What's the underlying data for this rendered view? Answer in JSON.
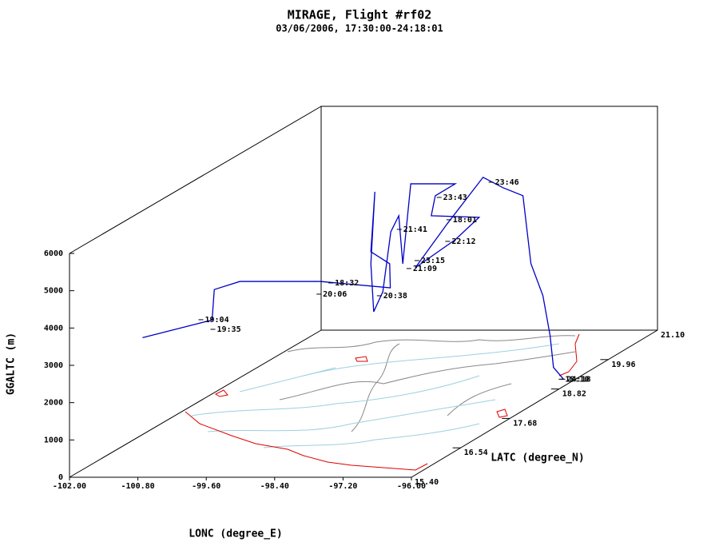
{
  "chart_data": {
    "type": "line3d",
    "title": "MIRAGE, Flight #rf02",
    "subtitle": "03/06/2006, 17:30:00-24:18:01",
    "xlabel": "LONC (degree_E)",
    "ylabel": "LATC (degree_N)",
    "zlabel": "GGALTC (m)",
    "xlim": [
      -102,
      -96
    ],
    "xticks": [
      {
        "value": -102,
        "label": "-102.00"
      },
      {
        "value": -100.8,
        "label": "-100.80"
      },
      {
        "value": -99.6,
        "label": "-99.60"
      },
      {
        "value": -98.4,
        "label": "-98.40"
      },
      {
        "value": -97.2,
        "label": "-97.20"
      },
      {
        "value": -96,
        "label": "-96.00"
      }
    ],
    "ylim": [
      15.4,
      21.1
    ],
    "yticks": [
      {
        "value": 15.4,
        "label": "15.40"
      },
      {
        "value": 16.54,
        "label": "16.54"
      },
      {
        "value": 17.68,
        "label": "17.68"
      },
      {
        "value": 18.82,
        "label": "18.82"
      },
      {
        "value": 19.96,
        "label": "19.96"
      },
      {
        "value": 21.1,
        "label": "21.10"
      }
    ],
    "zlim": [
      0,
      6000
    ],
    "zticks": [
      0,
      1000,
      2000,
      3000,
      4000,
      5000,
      6000
    ],
    "series": [
      {
        "color": "#0000c8",
        "x": [
          -101.93,
          -100.99,
          -100.71,
          -101.05,
          -100.98,
          -99.57,
          -98.34,
          -98.73,
          -99.06,
          -98.99,
          -99.06,
          -99.01,
          -98.85,
          -98.71,
          -98.57,
          -98.5,
          -98.36,
          -97.58,
          -97.93,
          -98.0,
          -97.16,
          -97.58,
          -98.28,
          -97.72,
          -97.47,
          -97.12,
          -96.77,
          -96.63,
          -96.42,
          -96.37,
          -96.31,
          -96.21
        ],
        "y": [
          17.0,
          17.0,
          17.0,
          17.5,
          18.0,
          18.0,
          18.0,
          18.5,
          18.5,
          18.5,
          18.5,
          18.5,
          18.5,
          18.5,
          18.5,
          18.5,
          18.5,
          18.5,
          18.5,
          18.5,
          18.5,
          18.5,
          18.5,
          18.5,
          19.0,
          19.0,
          19.0,
          19.0,
          19.0,
          19.1,
          19.1,
          19.2
        ],
        "z": [
          2636,
          3000,
          3107,
          3579,
          3450,
          3450,
          3279,
          3579,
          3900,
          5507,
          3579,
          2293,
          2829,
          4436,
          4865,
          3579,
          5721,
          5721,
          5400,
          4865,
          4822,
          4222,
          3472,
          4650,
          5550,
          5271,
          5057,
          3236,
          2379,
          1243,
          386,
          0
        ]
      }
    ],
    "annotations": [
      {
        "text": "19:04",
        "x": -102.0,
        "y": 18.5,
        "z": 2079
      },
      {
        "text": "19:35",
        "x": -101.79,
        "y": 18.5,
        "z": 1821
      },
      {
        "text": "18:32",
        "x": -99.72,
        "y": 18.5,
        "z": 3064
      },
      {
        "text": "20:06",
        "x": -99.93,
        "y": 18.5,
        "z": 2764
      },
      {
        "text": "20:38",
        "x": -98.87,
        "y": 18.5,
        "z": 2721
      },
      {
        "text": "23:46",
        "x": -96.91,
        "y": 18.5,
        "z": 5764
      },
      {
        "text": "23:43",
        "x": -97.82,
        "y": 18.5,
        "z": 5357
      },
      {
        "text": "18:01",
        "x": -97.65,
        "y": 18.5,
        "z": 4757
      },
      {
        "text": "21:41",
        "x": -98.52,
        "y": 18.5,
        "z": 4500
      },
      {
        "text": "22:12",
        "x": -97.67,
        "y": 18.5,
        "z": 4179
      },
      {
        "text": "23:15",
        "x": -98.21,
        "y": 18.5,
        "z": 3664
      },
      {
        "text": "21:09",
        "x": -98.35,
        "y": 18.5,
        "z": 3450
      },
      {
        "text": "18:10",
        "x": -96.21,
        "y": 19.2,
        "z": 0
      },
      {
        "text": "24:18",
        "x": -96.18,
        "y": 19.2,
        "z": 0
      }
    ]
  }
}
